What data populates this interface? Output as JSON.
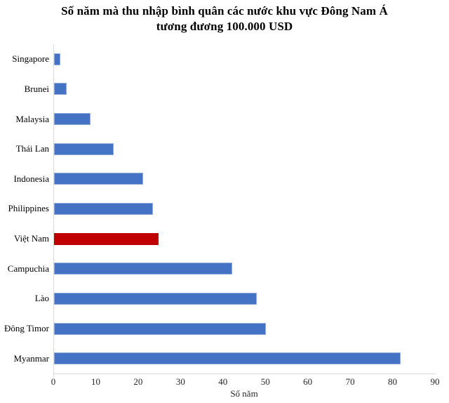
{
  "chart_data": {
    "type": "bar",
    "orientation": "horizontal",
    "title": "Số năm mà thu nhập bình quân các nước khu vực Đông Nam Á tương đương 100.000 USD",
    "title_lines": [
      "Số năm mà thu nhập bình quân các nước khu vực Đông Nam Á",
      "tương đương 100.000 USD"
    ],
    "xlabel": "Số năm",
    "xlim": [
      0,
      90
    ],
    "xticks": [
      0,
      10,
      20,
      30,
      40,
      50,
      60,
      70,
      80,
      90
    ],
    "grid": "off",
    "legend": "none",
    "categories": [
      "Singapore",
      "Brunei",
      "Malaysia",
      "Thái Lan",
      "Indonesia",
      "Philippines",
      "Việt Nam",
      "Campuchia",
      "Lào",
      "Đông Timor",
      "Myanmar"
    ],
    "values": [
      1.5,
      2.9,
      8.6,
      14,
      21,
      23.3,
      24.6,
      42,
      47.8,
      50,
      81.7
    ],
    "bar_colors": [
      "#4472C4",
      "#4472C4",
      "#4472C4",
      "#4472C4",
      "#4472C4",
      "#4472C4",
      "#C00000",
      "#4472C4",
      "#4472C4",
      "#4472C4",
      "#4472C4"
    ],
    "bar_border_colors": [
      "#8FAADC",
      "#8FAADC",
      "#8FAADC",
      "#8FAADC",
      "#8FAADC",
      "#8FAADC",
      "#C00000",
      "#8FAADC",
      "#8FAADC",
      "#8FAADC",
      "#8FAADC"
    ],
    "highlighted_category": "Việt Nam",
    "highlight_color": "#C00000",
    "default_bar_color": "#4472C4",
    "axis_line_color": "#D9D9D9"
  }
}
